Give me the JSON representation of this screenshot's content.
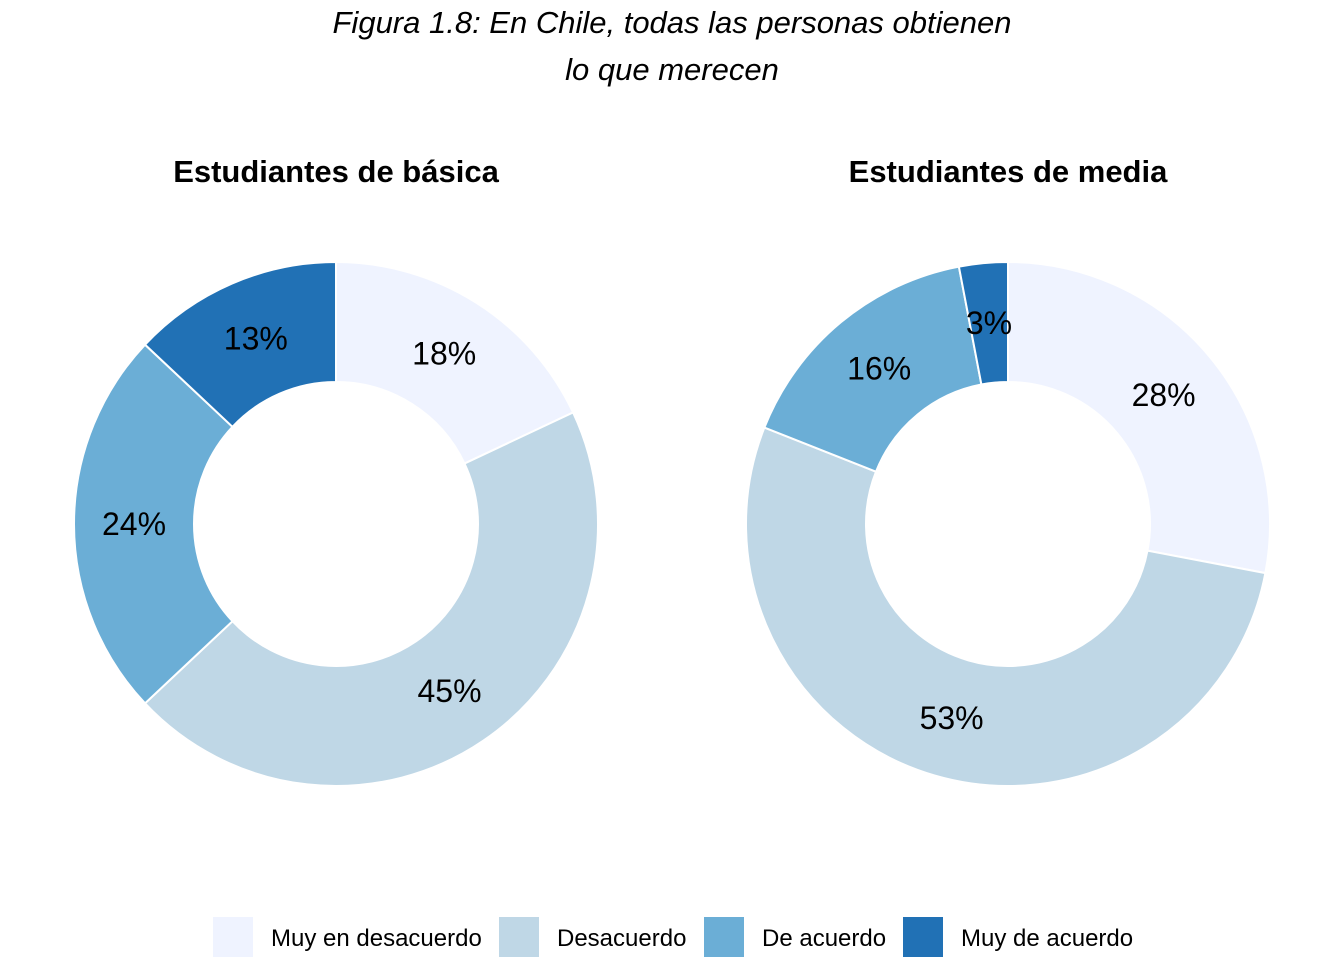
{
  "figure": {
    "title_line1": "Figura 1.8: En Chile, todas las personas obtienen",
    "title_line2": "lo que merecen"
  },
  "chart_data": [
    {
      "type": "pie",
      "donut": true,
      "title": "Estudiantes de básica",
      "categories": [
        "Muy en desacuerdo",
        "Desacuerdo",
        "De acuerdo",
        "Muy de acuerdo"
      ],
      "values": [
        18,
        45,
        24,
        13
      ],
      "labels": [
        "18%",
        "45%",
        "24%",
        "13%"
      ],
      "unit": "%",
      "direction": "clockwise from top",
      "legend": "bottom"
    },
    {
      "type": "pie",
      "donut": true,
      "title": "Estudiantes de media",
      "categories": [
        "Muy en desacuerdo",
        "Desacuerdo",
        "De acuerdo",
        "Muy de acuerdo"
      ],
      "values": [
        28,
        53,
        16,
        3
      ],
      "labels": [
        "28%",
        "53%",
        "16%",
        "3%"
      ],
      "unit": "%",
      "direction": "clockwise from top",
      "legend": "bottom"
    }
  ],
  "legend": {
    "items": [
      {
        "label": "Muy en desacuerdo",
        "color": "#eff3ff"
      },
      {
        "label": "Desacuerdo",
        "color": "#bfd7e6"
      },
      {
        "label": "De acuerdo",
        "color": "#6baed6"
      },
      {
        "label": "Muy de acuerdo",
        "color": "#2171b5"
      }
    ]
  }
}
